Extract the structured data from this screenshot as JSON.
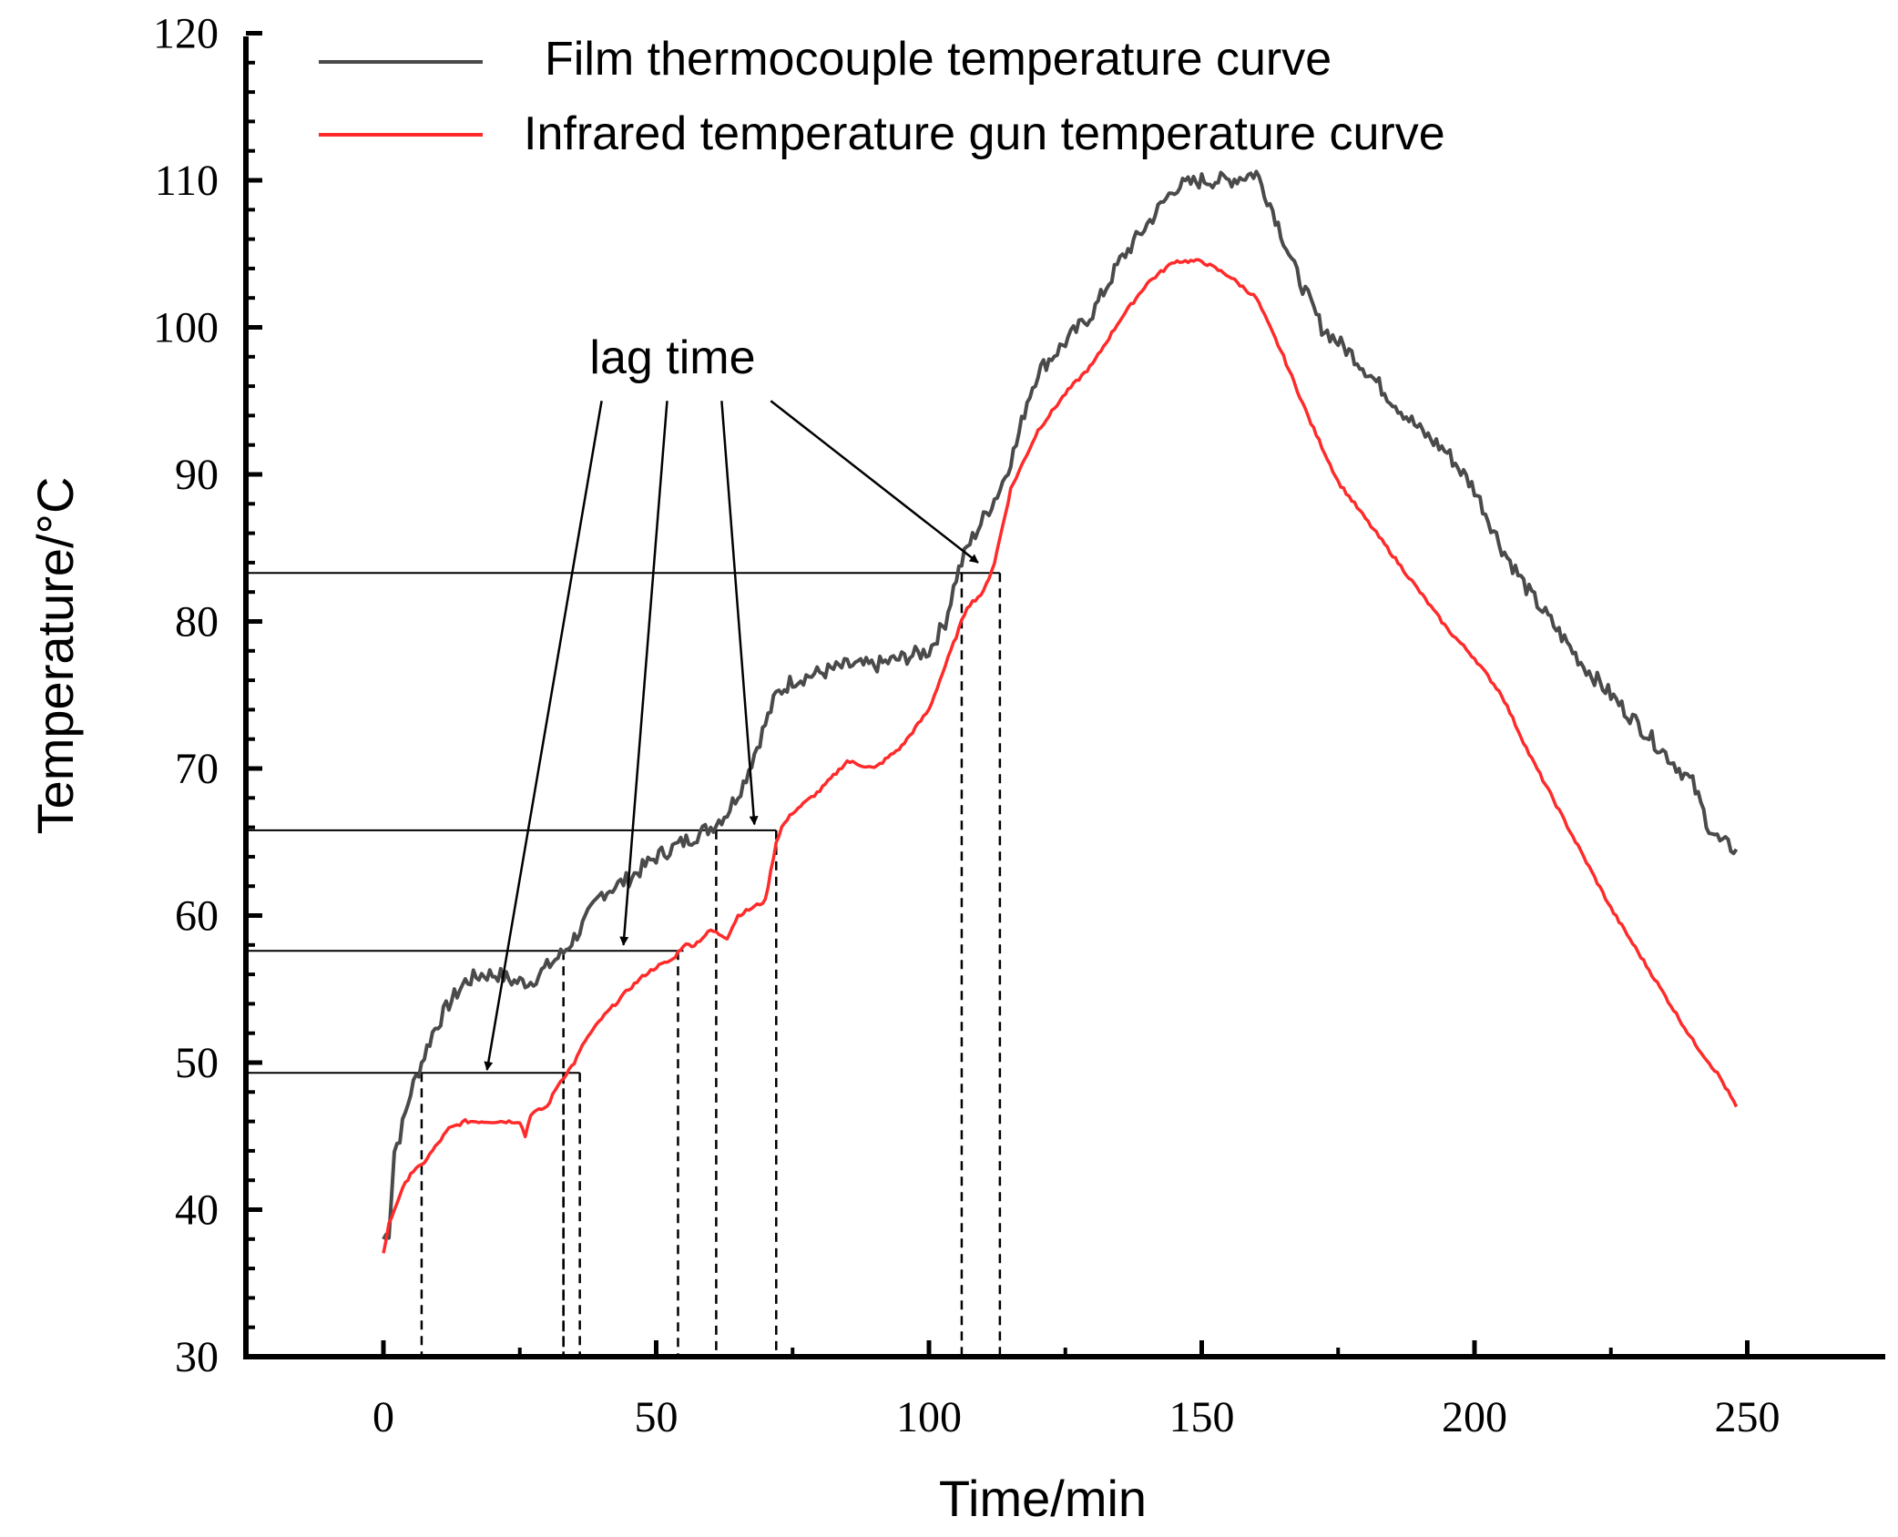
{
  "chart_data": {
    "type": "line",
    "xlabel": "Time/min",
    "ylabel": "Temperature/°C",
    "xlim": [
      -25,
      275
    ],
    "ylim": [
      30,
      120
    ],
    "x_ticks": [
      0,
      50,
      100,
      150,
      200,
      250
    ],
    "x_tick_labels": [
      "0",
      "50",
      "100",
      "150",
      "200",
      "250"
    ],
    "y_ticks": [
      30,
      40,
      50,
      60,
      70,
      80,
      90,
      100,
      110,
      120
    ],
    "y_tick_labels": [
      "30",
      "40",
      "50",
      "60",
      "70",
      "80",
      "90",
      "100",
      "110",
      "120"
    ],
    "legend_position": "top-left",
    "series": [
      {
        "name": "Film thermocouple temperature curve",
        "color": "#4a4a4a",
        "x": [
          0,
          1,
          2,
          3,
          4,
          5,
          7,
          9,
          12,
          15,
          18,
          21,
          24,
          27,
          30,
          33,
          36,
          40,
          45,
          50,
          55,
          60,
          63,
          66,
          69,
          72,
          75,
          80,
          85,
          90,
          95,
          100,
          103,
          105,
          107,
          110,
          113,
          116,
          118,
          120,
          125,
          130,
          135,
          140,
          145,
          150,
          155,
          160,
          163,
          167,
          172,
          178,
          185,
          190,
          195,
          200,
          205,
          210,
          215,
          220,
          225,
          230,
          235,
          240,
          243,
          245,
          248
        ],
        "y": [
          38,
          38.5,
          44,
          45,
          46.5,
          48,
          50,
          52,
          54,
          55.5,
          56,
          56,
          55.5,
          55.5,
          56.5,
          57.5,
          59,
          61.5,
          62.5,
          64,
          65,
          66,
          67,
          69,
          72,
          75,
          76,
          76.5,
          77,
          77,
          77.5,
          78,
          80,
          83,
          85,
          87,
          89,
          92,
          95,
          97,
          99,
          101,
          104.5,
          107,
          109.5,
          110,
          110,
          110.5,
          108,
          104,
          100,
          98,
          95,
          93,
          91.5,
          89,
          85,
          82,
          79.5,
          77,
          75,
          73,
          71,
          69,
          66,
          65,
          64.5
        ]
      },
      {
        "name": "Infrared temperature gun temperature curve",
        "color": "#ff2a2a",
        "x": [
          0,
          1,
          3,
          5,
          7,
          10,
          12,
          15,
          20,
          25,
          26,
          27,
          30,
          32,
          33,
          35,
          37,
          40,
          45,
          48,
          50,
          53,
          55,
          57,
          60,
          63,
          65,
          70,
          71,
          72,
          73,
          75,
          80,
          85,
          90,
          95,
          100,
          103,
          105,
          107,
          110,
          112,
          115,
          120,
          125,
          130,
          135,
          140,
          145,
          150,
          155,
          160,
          165,
          170,
          175,
          180,
          185,
          190,
          195,
          200,
          205,
          210,
          215,
          220,
          225,
          230,
          235,
          240,
          245,
          248
        ],
        "y": [
          37,
          39,
          41,
          42.5,
          43,
          44.5,
          45.5,
          46,
          46,
          46,
          45,
          46.5,
          47,
          48.5,
          49,
          50,
          51.5,
          53,
          55,
          56,
          56.5,
          57,
          58,
          58,
          59,
          58.5,
          60,
          61,
          63,
          65,
          66,
          67,
          68.5,
          70.5,
          70,
          71.5,
          74,
          77,
          79,
          81,
          82,
          84,
          89,
          93,
          95.5,
          97.5,
          100.5,
          103,
          104.5,
          104.5,
          103.5,
          102,
          98,
          93.5,
          89.5,
          87,
          84.5,
          82,
          79.5,
          77.5,
          75,
          71,
          67.5,
          64,
          60.5,
          57.5,
          54.5,
          51.5,
          49,
          47
        ]
      }
    ],
    "reference_lines": [
      {
        "y": 49.3,
        "x_end": 36,
        "drop_x": [
          7,
          33,
          36
        ]
      },
      {
        "y": 57.6,
        "x_end": 55,
        "drop_x": [
          33,
          54
        ]
      },
      {
        "y": 65.8,
        "x_end": 72,
        "drop_x": [
          61,
          72
        ]
      },
      {
        "y": 83.3,
        "x_end": 113,
        "drop_x": [
          106,
          113
        ]
      }
    ],
    "annotations": [
      {
        "text": "lag time",
        "at": [
          53,
          98
        ],
        "arrows": [
          {
            "from": [
              40,
              95
            ],
            "to": [
              19,
              49.5
            ]
          },
          {
            "from": [
              52,
              95
            ],
            "to": [
              44,
              58
            ]
          },
          {
            "from": [
              62,
              95
            ],
            "to": [
              68,
              66.2
            ]
          },
          {
            "from": [
              71,
              95
            ],
            "to": [
              109,
              84
            ]
          }
        ]
      }
    ]
  }
}
